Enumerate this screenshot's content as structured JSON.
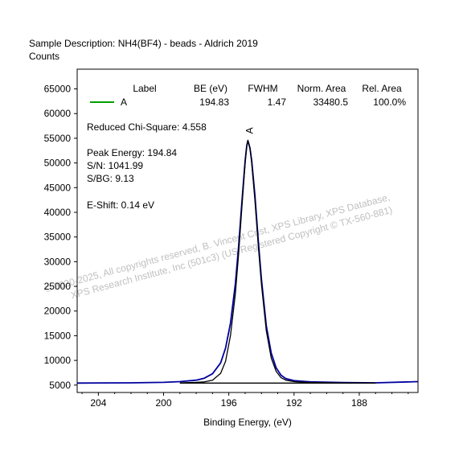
{
  "header": {
    "sample_description": "Sample Description:  NH4(BF4) - beads - Aldrich 2019",
    "y_unit": "Counts"
  },
  "chart_data": {
    "type": "line",
    "xlabel": "Binding Energy, (eV)",
    "ylabel": "Counts",
    "x_reversed": true,
    "xlim": [
      205.3,
      184.4
    ],
    "ylim": [
      3500,
      69000
    ],
    "x_ticks": [
      204,
      200,
      196,
      192,
      188
    ],
    "y_ticks": [
      5000,
      10000,
      15000,
      20000,
      25000,
      30000,
      35000,
      40000,
      45000,
      50000,
      55000,
      60000,
      65000
    ],
    "background_level": 5400,
    "peak_label": "A",
    "legend": {
      "headers": [
        "Label",
        "BE (eV)",
        "FWHM",
        "Norm. Area",
        "Rel. Area"
      ],
      "rows": [
        {
          "label": "A",
          "be": "194.83",
          "fwhm": "1.47",
          "norm_area": "33480.5",
          "rel_area": "100.0%",
          "color": "#00a000"
        }
      ]
    },
    "annotations": {
      "chi_square": "Reduced Chi-Square: 4.558",
      "peak_energy": "Peak Energy: 194.84",
      "sn": "S/N: 1041.99",
      "sbg": "S/BG: 9.13",
      "eshift": "E-Shift: 0.14 eV"
    },
    "series": [
      {
        "role": "envelope",
        "color": "#0000a0",
        "x": [
          205.3,
          202.0,
          200.0,
          199.0,
          198.0,
          197.5,
          197.0,
          196.5,
          196.2,
          195.9,
          195.6,
          195.4,
          195.2,
          195.0,
          194.9,
          194.83,
          194.7,
          194.6,
          194.4,
          194.2,
          194.0,
          193.7,
          193.4,
          193.1,
          192.8,
          192.5,
          192.0,
          191.0,
          189.0,
          187.0,
          184.4
        ],
        "y": [
          5400,
          5450,
          5550,
          5700,
          6000,
          6400,
          7300,
          9500,
          12500,
          17500,
          25500,
          33000,
          42000,
          50500,
          53500,
          54500,
          53000,
          50500,
          43500,
          34500,
          26500,
          17000,
          11500,
          8500,
          7000,
          6300,
          5900,
          5650,
          5500,
          5450,
          5700
        ]
      },
      {
        "role": "component",
        "color": "#000000",
        "x": [
          199.0,
          198.0,
          197.5,
          197.0,
          196.5,
          196.2,
          195.9,
          195.6,
          195.4,
          195.2,
          195.0,
          194.9,
          194.83,
          194.7,
          194.6,
          194.4,
          194.2,
          194.0,
          193.7,
          193.4,
          193.1,
          192.8,
          192.5,
          192.0,
          191.0,
          189.0,
          187.0
        ],
        "y": [
          5450,
          5550,
          5650,
          6000,
          7400,
          9800,
          15000,
          23500,
          31500,
          41000,
          50000,
          53500,
          54600,
          53000,
          50000,
          42500,
          33500,
          25500,
          16000,
          10500,
          7800,
          6500,
          6000,
          5700,
          5500,
          5420,
          5400
        ]
      },
      {
        "role": "background",
        "color": "#000000",
        "x": [
          199.0,
          187.0
        ],
        "y": [
          5400,
          5400
        ]
      }
    ]
  },
  "watermark": {
    "line1": "© 2020-2025,  All copyrights reserved,   B. Vincent Crist,  XPS Library, XPS Database,",
    "line2": "XPS Research Institute, Inc (501c3)   (US Registered Copyright © TX-560-881)"
  }
}
